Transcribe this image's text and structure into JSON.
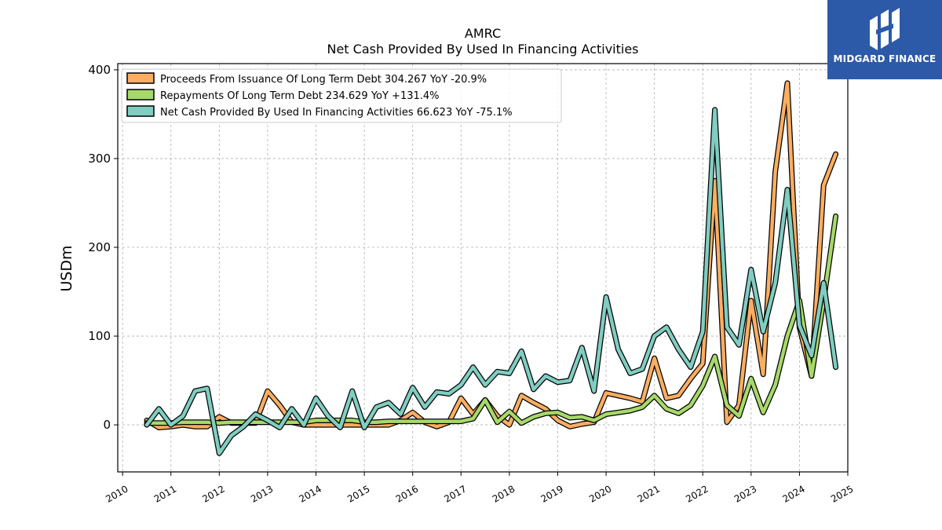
{
  "chart_data": {
    "type": "line",
    "title": "AMRC",
    "subtitle": "Net Cash Provided By Used In Financing Activities",
    "ylabel": "USDm",
    "xlabel": "",
    "ylim": [
      -53,
      407
    ],
    "xlim": [
      2009.9,
      2025.0
    ],
    "yticks": [
      0,
      100,
      200,
      300,
      400
    ],
    "xticks": [
      2010,
      2011,
      2012,
      2013,
      2014,
      2015,
      2016,
      2017,
      2018,
      2019,
      2020,
      2021,
      2022,
      2023,
      2024,
      2025
    ],
    "grid": true,
    "legend_position": "top-left",
    "series": [
      {
        "name": "Proceeds From Issuance Of Long Term Debt",
        "legend": "Proceeds From Issuance Of Long Term Debt  304.267 YoY -20.9%",
        "color": "#fdae61",
        "x": [
          2010.5,
          2010.75,
          2011.0,
          2011.25,
          2011.5,
          2011.75,
          2012.0,
          2012.25,
          2012.5,
          2012.75,
          2013.0,
          2013.25,
          2013.5,
          2013.75,
          2014.0,
          2014.25,
          2014.5,
          2014.75,
          2015.0,
          2015.25,
          2015.5,
          2015.75,
          2016.0,
          2016.25,
          2016.5,
          2016.75,
          2017.0,
          2017.25,
          2017.5,
          2017.75,
          2018.0,
          2018.25,
          2018.5,
          2018.75,
          2019.0,
          2019.25,
          2019.5,
          2019.75,
          2020.0,
          2020.25,
          2020.5,
          2020.75,
          2021.0,
          2021.25,
          2021.5,
          2021.75,
          2022.0,
          2022.25,
          2022.5,
          2022.75,
          2023.0,
          2023.25,
          2023.5,
          2023.75,
          2024.0,
          2024.25,
          2024.5,
          2024.75
        ],
        "values": [
          5,
          -3,
          -2,
          0,
          -2,
          -2,
          9,
          2,
          2,
          2,
          38,
          22,
          3,
          0,
          0,
          0,
          0,
          0,
          0,
          0,
          0,
          5,
          14,
          3,
          -2,
          3,
          30,
          12,
          28,
          10,
          0,
          33,
          25,
          18,
          5,
          -2,
          1,
          3,
          36,
          33,
          30,
          26,
          75,
          30,
          33,
          52,
          69,
          275,
          3,
          22,
          140,
          57,
          285,
          385,
          110,
          55,
          270,
          305
        ]
      },
      {
        "name": "Repayments Of Long Term Debt",
        "legend": "Repayments Of Long Term Debt  234.629 YoY +131.4%",
        "color": "#a6d96a",
        "x": [
          2010.5,
          2010.75,
          2011.0,
          2011.25,
          2011.5,
          2011.75,
          2012.0,
          2012.25,
          2012.5,
          2012.75,
          2013.0,
          2013.25,
          2013.5,
          2013.75,
          2014.0,
          2014.25,
          2014.5,
          2014.75,
          2015.0,
          2015.25,
          2015.5,
          2015.75,
          2016.0,
          2016.25,
          2016.5,
          2016.75,
          2017.0,
          2017.25,
          2017.5,
          2017.75,
          2018.0,
          2018.25,
          2018.5,
          2018.75,
          2019.0,
          2019.25,
          2019.5,
          2019.75,
          2020.0,
          2020.25,
          2020.5,
          2020.75,
          2021.0,
          2021.25,
          2021.5,
          2021.75,
          2022.0,
          2022.25,
          2022.5,
          2022.75,
          2023.0,
          2023.25,
          2023.5,
          2023.75,
          2024.0,
          2024.25,
          2024.5,
          2024.75
        ],
        "values": [
          2,
          2,
          2,
          3,
          3,
          3,
          2,
          3,
          3,
          3,
          3,
          3,
          3,
          3,
          5,
          5,
          5,
          5,
          3,
          3,
          4,
          4,
          4,
          4,
          4,
          4,
          4,
          7,
          28,
          3,
          15,
          2,
          9,
          13,
          14,
          8,
          9,
          5,
          12,
          14,
          16,
          20,
          33,
          18,
          13,
          22,
          44,
          77,
          22,
          10,
          52,
          14,
          45,
          100,
          140,
          55,
          140,
          235
        ]
      },
      {
        "name": "Net Cash Provided By Used In Financing Activities",
        "legend": "Net Cash Provided By Used In Financing Activities  66.623 YoY -75.1%",
        "color": "#80cdc1",
        "x": [
          2010.5,
          2010.75,
          2011.0,
          2011.25,
          2011.5,
          2011.75,
          2012.0,
          2012.25,
          2012.5,
          2012.75,
          2013.0,
          2013.25,
          2013.5,
          2013.75,
          2014.0,
          2014.25,
          2014.5,
          2014.75,
          2015.0,
          2015.25,
          2015.5,
          2015.75,
          2016.0,
          2016.25,
          2016.5,
          2016.75,
          2017.0,
          2017.25,
          2017.5,
          2017.75,
          2018.0,
          2018.25,
          2018.5,
          2018.75,
          2019.0,
          2019.25,
          2019.5,
          2019.75,
          2020.0,
          2020.25,
          2020.5,
          2020.75,
          2021.0,
          2021.25,
          2021.5,
          2021.75,
          2022.0,
          2022.25,
          2022.5,
          2022.75,
          2023.0,
          2023.25,
          2023.5,
          2023.75,
          2024.0,
          2024.25,
          2024.5,
          2024.75
        ],
        "values": [
          0,
          18,
          0,
          10,
          38,
          41,
          -32,
          -12,
          -2,
          12,
          5,
          -3,
          18,
          0,
          30,
          10,
          -3,
          38,
          -3,
          20,
          25,
          12,
          42,
          20,
          37,
          35,
          45,
          65,
          45,
          60,
          58,
          83,
          40,
          55,
          48,
          50,
          87,
          38,
          144,
          85,
          58,
          63,
          100,
          110,
          85,
          65,
          105,
          355,
          110,
          90,
          175,
          105,
          160,
          265,
          112,
          78,
          160,
          65
        ]
      }
    ]
  },
  "logo": {
    "name": "midgard-logo",
    "text": "MIDGARD FINANCE",
    "color": "#2c5aa8"
  }
}
